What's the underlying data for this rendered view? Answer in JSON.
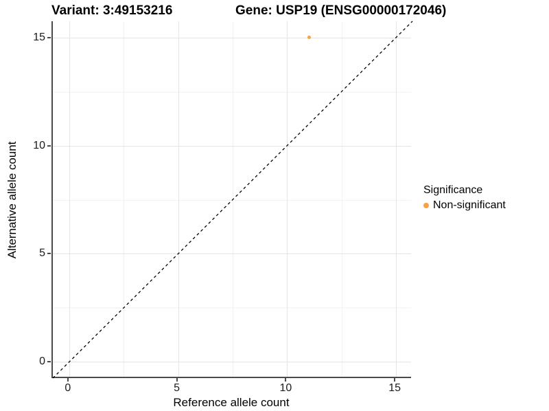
{
  "titles": {
    "variant": "Variant: 3:49153216",
    "gene": "Gene: USP19 (ENSG00000172046)"
  },
  "axes": {
    "x": {
      "label": "Reference allele count",
      "tick_labels": [
        "0",
        "5",
        "10",
        "15"
      ]
    },
    "y": {
      "label": "Alternative allele count",
      "tick_labels": [
        "0",
        "5",
        "10",
        "15"
      ]
    }
  },
  "legend": {
    "title": "Significance",
    "items": [
      {
        "label": "Non-significant",
        "color": "#F9A242"
      }
    ]
  },
  "colors": {
    "point": "#F9A242",
    "axis_line": "#4a4a4a",
    "grid_major": "#e4e4e4",
    "grid_minor": "#f2f2f2",
    "reference_line": "#000000",
    "text": "#1a1a1a"
  },
  "chart_data": {
    "type": "scatter",
    "title": "Variant: 3:49153216 — Gene: USP19 (ENSG00000172046)",
    "xlabel": "Reference allele count",
    "ylabel": "Alternative allele count",
    "xlim": [
      -0.75,
      15.75
    ],
    "ylim": [
      -0.75,
      15.75
    ],
    "x_ticks": [
      0,
      5,
      10,
      15
    ],
    "y_ticks": [
      0,
      5,
      10,
      15
    ],
    "x_minor_ticks": [
      2.5,
      7.5,
      12.5
    ],
    "y_minor_ticks": [
      2.5,
      7.5,
      12.5
    ],
    "grid": "major and minor gridlines, light gray on white; axis lines left and bottom only",
    "legend_position": "right",
    "series": [
      {
        "name": "Non-significant",
        "color": "#F9A242",
        "points": [
          [
            11,
            15
          ]
        ]
      }
    ],
    "reference_line": {
      "kind": "identity_y_equals_x",
      "from": [
        -0.75,
        -0.75
      ],
      "to": [
        15.75,
        15.75
      ],
      "style": "dashed",
      "color": "#000000"
    }
  }
}
